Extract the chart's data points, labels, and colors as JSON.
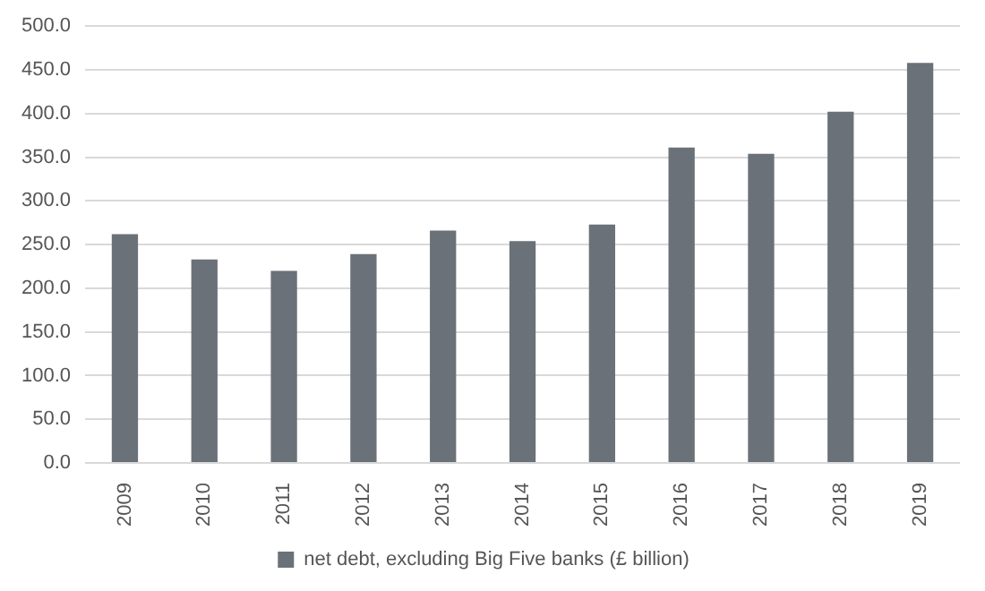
{
  "chart_data": {
    "type": "bar",
    "categories": [
      "2009",
      "2010",
      "2011",
      "2012",
      "2013",
      "2014",
      "2015",
      "2016",
      "2017",
      "2018",
      "2019"
    ],
    "series": [
      {
        "name": "net debt, excluding Big Five banks (£ billion)",
        "color": "#6b7178",
        "values": [
          262,
          233,
          220,
          239,
          266,
          254,
          273,
          361,
          354,
          402,
          458
        ]
      }
    ],
    "ylim": [
      0,
      500
    ],
    "yticks": [
      {
        "value": 0,
        "label": "0.0"
      },
      {
        "value": 50,
        "label": "50.0"
      },
      {
        "value": 100,
        "label": "100.0"
      },
      {
        "value": 150,
        "label": "150.0"
      },
      {
        "value": 200,
        "label": "200.0"
      },
      {
        "value": 250,
        "label": "250.0"
      },
      {
        "value": 300,
        "label": "300.0"
      },
      {
        "value": 350,
        "label": "350.0"
      },
      {
        "value": 400,
        "label": "400.0"
      },
      {
        "value": 450,
        "label": "450.0"
      },
      {
        "value": 500,
        "label": "500.0"
      }
    ],
    "grid": "y",
    "legend": "bottom"
  }
}
